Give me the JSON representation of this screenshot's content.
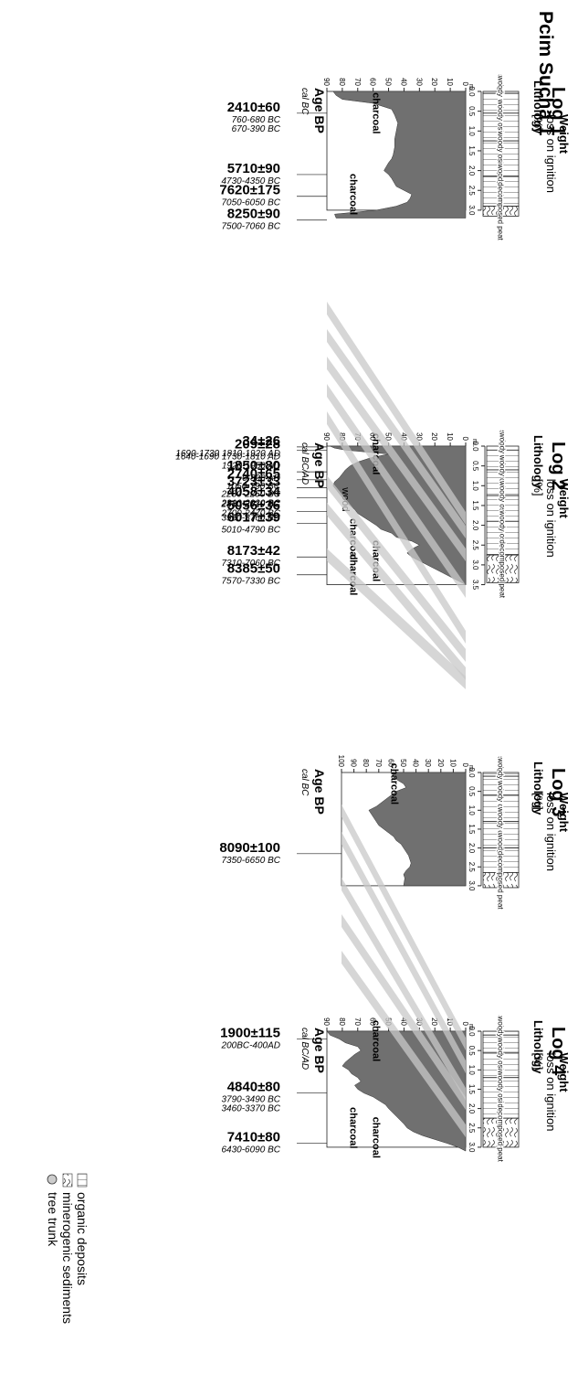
{
  "title": "Pcim Sucha 1",
  "common": {
    "lithology_label": "Lithology",
    "depth_unit": "m",
    "weight_label": [
      "Weight",
      "loss on ignition",
      "[%]"
    ],
    "charcoal": "charcoal",
    "wood": "wood",
    "colors": {
      "fill": "#707070",
      "band": "#c8c8c8",
      "line": "#222222"
    }
  },
  "legend": [
    {
      "icon": "organic-hatch-icon",
      "label": "organic deposits"
    },
    {
      "icon": "minerogenic-hatch-icon",
      "label": "minerogenic sediments"
    },
    {
      "icon": "tree-trunk-icon",
      "label": "tree trunk"
    }
  ],
  "logs": [
    {
      "title": "Log 1",
      "age_header": "Age BP",
      "age_sub": "cal BC",
      "depth_ticks": [
        "0.0",
        "0.5",
        "1.0",
        "1.5",
        "2.0",
        "2.5",
        "3.0"
      ],
      "loi_ticks": [
        "0",
        "10",
        "20",
        "30",
        "40",
        "50",
        "60",
        "70",
        "80",
        "90"
      ],
      "units": [
        "sedge peat",
        "woody osier peat",
        "woody osier peat",
        "woody osier peat",
        "woody osier peat",
        "decomposed peat"
      ],
      "dates": [
        {
          "age": "2410±60",
          "cal": [
            "760-680 BC",
            "670-390 BC"
          ]
        },
        {
          "age": "5710±90",
          "cal": [
            "4730-4350 BC"
          ]
        },
        {
          "age": "7620±175",
          "cal": [
            "7050-6050 BC"
          ]
        },
        {
          "age": "8250±90",
          "cal": [
            "7500-7060 BC"
          ]
        }
      ],
      "charcoal_labels": [
        "charcoal",
        "charcoal"
      ]
    },
    {
      "title": "Log 2",
      "age_header": "Age BP",
      "age_sub": "cal BC/AD",
      "depth_ticks": [
        "0.0",
        "0.5",
        "1.0",
        "1.5",
        "2.0",
        "2.5",
        "3.0",
        "3.5"
      ],
      "loi_ticks": [
        "0",
        "10",
        "20",
        "30",
        "40",
        "50",
        "60",
        "70",
        "80",
        "90"
      ],
      "units": [
        "sedge peat",
        "woody osier peat",
        "woody osier peat",
        "woody osier peat",
        "woody osier peat",
        "decomposed peat"
      ],
      "dates": [
        {
          "age": "209±28",
          "cal": [
            "1640-1690 1730-1810 AD",
            "1920-1950 AD"
          ]
        },
        {
          "age": "34±26",
          "cal": [
            "1690-1730 1810-1920 AD"
          ]
        },
        {
          "age": "1850±80",
          "cal": [
            "0-390 AD"
          ]
        },
        {
          "age": "2740±65",
          "cal": [
            "1050-790 BC"
          ]
        },
        {
          "age": "3723±33",
          "cal": [
            "2280-2250 BC",
            "2210-2020 BC"
          ]
        },
        {
          "age": "4058±34",
          "cal": [
            "2850-2810 BC",
            "2700-2470 BC"
          ]
        },
        {
          "age": "5056±36",
          "cal": [
            "3960-3760 BC"
          ]
        },
        {
          "age": "6017±39",
          "cal": [
            "5010-4790 BC"
          ]
        },
        {
          "age": "8173±42",
          "cal": [
            "7310-7060 BC"
          ]
        },
        {
          "age": "8385±50",
          "cal": [
            "7570-7330 BC"
          ]
        }
      ],
      "charcoal_labels": [
        "charcoal",
        "charcoal",
        "charcoal",
        "charcoal"
      ]
    },
    {
      "title": "Log 3",
      "age_header": "Age BP",
      "age_sub": "cal BC",
      "depth_ticks": [
        "0.0",
        "0.5",
        "1.0",
        "1.5",
        "2.0",
        "2.5",
        "3.0"
      ],
      "loi_ticks": [
        "0",
        "10",
        "20",
        "30",
        "40",
        "50",
        "60",
        "70",
        "80",
        "90",
        "100"
      ],
      "units": [
        "sedge peat",
        "woody osier peat",
        "woody osier peat",
        "woody osier peat",
        "woody osier peat",
        "decomposed peat"
      ],
      "dates": [
        {
          "age": "8090±100",
          "cal": [
            "7350-6650 BC"
          ]
        }
      ],
      "charcoal_labels": [
        "charcoal"
      ]
    },
    {
      "title": "Log 4",
      "age_header": "Age BP",
      "age_sub": "cal BC/AD",
      "depth_ticks": [
        "0.0",
        "0.5",
        "1.0",
        "1.5",
        "2.0",
        "2.5",
        "3.0"
      ],
      "loi_ticks": [
        "0",
        "10",
        "20",
        "30",
        "40",
        "50",
        "60",
        "70",
        "80",
        "90"
      ],
      "units": [
        "sedge peat",
        "woody osier peat",
        "woody osier peat",
        "woody osier peat",
        "decomposed peat"
      ],
      "dates": [
        {
          "age": "1900±115",
          "cal": [
            "200BC-400AD"
          ]
        },
        {
          "age": "4840±80",
          "cal": [
            "3790-3490 BC",
            "3460-3370 BC"
          ]
        },
        {
          "age": "7410±80",
          "cal": [
            "6430-6090 BC"
          ]
        }
      ],
      "charcoal_labels": [
        "charcoal",
        "charcoal",
        "charcoal"
      ]
    }
  ]
}
